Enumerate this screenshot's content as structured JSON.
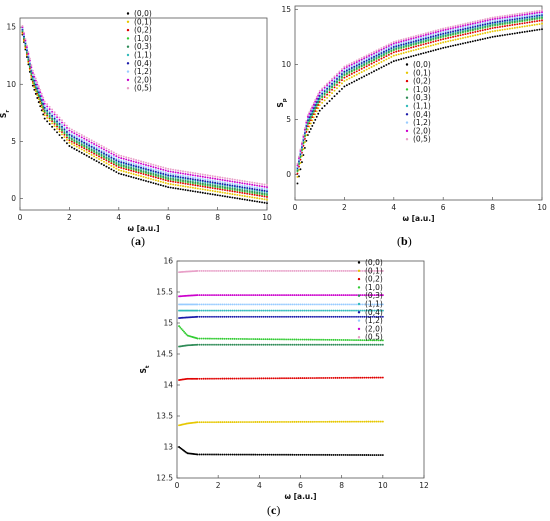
{
  "captions": [
    {
      "open": "(",
      "letter": "a",
      "close": ")"
    },
    {
      "open": "(",
      "letter": "b",
      "close": ")"
    },
    {
      "open": "(",
      "letter": "c",
      "close": ")"
    }
  ],
  "chart_data": [
    {
      "type": "scatter",
      "panel": "a",
      "xlabel": "ω [a.u.]",
      "ylabel": "S_r",
      "xlim": [
        0,
        10
      ],
      "ylim": [
        -1,
        15.8
      ],
      "xticks": [
        0,
        2,
        4,
        6,
        8,
        10
      ],
      "yticks": [
        0,
        5,
        10,
        15
      ],
      "grid": false,
      "legend_position": "top-right",
      "series": [
        {
          "name": "(0,0)",
          "color": "#000000",
          "values": [
            [
              0.1,
              14.35
            ],
            [
              0.5,
              10.0
            ],
            [
              1,
              7.0
            ],
            [
              2,
              4.6
            ],
            [
              4,
              2.2
            ],
            [
              6,
              1.0
            ],
            [
              8,
              0.3
            ],
            [
              10,
              -0.4
            ]
          ]
        },
        {
          "name": "(0,1)",
          "color": "#e6c700",
          "values": [
            [
              0.1,
              14.45
            ],
            [
              0.5,
              10.2
            ],
            [
              1,
              7.3
            ],
            [
              2,
              4.9
            ],
            [
              4,
              2.5
            ],
            [
              6,
              1.3
            ],
            [
              8,
              0.6
            ],
            [
              10,
              -0.1
            ]
          ]
        },
        {
          "name": "(0,2)",
          "color": "#e00000",
          "values": [
            [
              0.1,
              14.55
            ],
            [
              0.5,
              10.35
            ],
            [
              1,
              7.5
            ],
            [
              2,
              5.1
            ],
            [
              4,
              2.75
            ],
            [
              6,
              1.55
            ],
            [
              8,
              0.85
            ],
            [
              10,
              0.15
            ]
          ]
        },
        {
          "name": "(1,0)",
          "color": "#33cc33",
          "values": [
            [
              0.1,
              14.62
            ],
            [
              0.5,
              10.45
            ],
            [
              1,
              7.6
            ],
            [
              2,
              5.25
            ],
            [
              4,
              2.9
            ],
            [
              6,
              1.7
            ],
            [
              8,
              1.0
            ],
            [
              10,
              0.3
            ]
          ]
        },
        {
          "name": "(0,3)",
          "color": "#2e8b57",
          "values": [
            [
              0.1,
              14.68
            ],
            [
              0.5,
              10.55
            ],
            [
              1,
              7.7
            ],
            [
              2,
              5.35
            ],
            [
              4,
              3.0
            ],
            [
              6,
              1.8
            ],
            [
              8,
              1.1
            ],
            [
              10,
              0.4
            ]
          ]
        },
        {
          "name": "(1,1)",
          "color": "#33bbbb",
          "values": [
            [
              0.1,
              14.75
            ],
            [
              0.5,
              10.7
            ],
            [
              1,
              7.85
            ],
            [
              2,
              5.5
            ],
            [
              4,
              3.15
            ],
            [
              6,
              1.95
            ],
            [
              8,
              1.25
            ],
            [
              10,
              0.55
            ]
          ]
        },
        {
          "name": "(0,4)",
          "color": "#1a1aaa",
          "values": [
            [
              0.1,
              14.8
            ],
            [
              0.5,
              10.8
            ],
            [
              1,
              7.95
            ],
            [
              2,
              5.6
            ],
            [
              4,
              3.25
            ],
            [
              6,
              2.05
            ],
            [
              8,
              1.35
            ],
            [
              10,
              0.65
            ]
          ]
        },
        {
          "name": "(1,2)",
          "color": "#99ccff",
          "values": [
            [
              0.1,
              14.9
            ],
            [
              0.5,
              10.9
            ],
            [
              1,
              8.1
            ],
            [
              2,
              5.75
            ],
            [
              4,
              3.4
            ],
            [
              6,
              2.2
            ],
            [
              8,
              1.5
            ],
            [
              10,
              0.8
            ]
          ]
        },
        {
          "name": "(2,0)",
          "color": "#cc00cc",
          "values": [
            [
              0.1,
              15.0
            ],
            [
              0.5,
              11.1
            ],
            [
              1,
              8.3
            ],
            [
              2,
              5.95
            ],
            [
              4,
              3.6
            ],
            [
              6,
              2.4
            ],
            [
              8,
              1.7
            ],
            [
              10,
              1.0
            ]
          ]
        },
        {
          "name": "(0,5)",
          "color": "#e8a0c8",
          "values": [
            [
              0.1,
              15.1
            ],
            [
              0.5,
              11.3
            ],
            [
              1,
              8.5
            ],
            [
              2,
              6.15
            ],
            [
              4,
              3.8
            ],
            [
              6,
              2.6
            ],
            [
              8,
              1.9
            ],
            [
              10,
              1.2
            ]
          ]
        }
      ]
    },
    {
      "type": "scatter",
      "panel": "b",
      "xlabel": "ω [a.u.]",
      "ylabel": "S_p",
      "xlim": [
        0,
        10
      ],
      "ylim": [
        -2.3,
        15.3
      ],
      "xticks": [
        0,
        2,
        4,
        6,
        8,
        10
      ],
      "yticks": [
        0,
        5,
        10,
        15
      ],
      "grid": false,
      "legend_position": "bottom-right",
      "series": [
        {
          "name": "(0,0)",
          "color": "#000000",
          "values": [
            [
              0.1,
              -0.8
            ],
            [
              0.5,
              3.5
            ],
            [
              1,
              5.8
            ],
            [
              2,
              8.0
            ],
            [
              4,
              10.3
            ],
            [
              6,
              11.5
            ],
            [
              8,
              12.5
            ],
            [
              10,
              13.2
            ]
          ]
        },
        {
          "name": "(0,1)",
          "color": "#e6c700",
          "values": [
            [
              0.1,
              -0.2
            ],
            [
              0.5,
              4.0
            ],
            [
              1,
              6.3
            ],
            [
              2,
              8.5
            ],
            [
              4,
              10.8
            ],
            [
              6,
              12.0
            ],
            [
              8,
              13.0
            ],
            [
              10,
              13.7
            ]
          ]
        },
        {
          "name": "(0,2)",
          "color": "#e00000",
          "values": [
            [
              0.1,
              0.1
            ],
            [
              0.5,
              4.3
            ],
            [
              1,
              6.6
            ],
            [
              2,
              8.8
            ],
            [
              4,
              11.1
            ],
            [
              6,
              12.3
            ],
            [
              8,
              13.3
            ],
            [
              10,
              14.0
            ]
          ]
        },
        {
          "name": "(1,0)",
          "color": "#33cc33",
          "values": [
            [
              0.1,
              0.3
            ],
            [
              0.5,
              4.5
            ],
            [
              1,
              6.8
            ],
            [
              2,
              9.0
            ],
            [
              4,
              11.3
            ],
            [
              6,
              12.5
            ],
            [
              8,
              13.5
            ],
            [
              10,
              14.2
            ]
          ]
        },
        {
          "name": "(0,3)",
          "color": "#2e8b57",
          "values": [
            [
              0.1,
              0.4
            ],
            [
              0.5,
              4.6
            ],
            [
              1,
              6.9
            ],
            [
              2,
              9.1
            ],
            [
              4,
              11.4
            ],
            [
              6,
              12.6
            ],
            [
              8,
              13.6
            ],
            [
              10,
              14.3
            ]
          ]
        },
        {
          "name": "(1,1)",
          "color": "#33bbbb",
          "values": [
            [
              0.1,
              0.5
            ],
            [
              0.5,
              4.75
            ],
            [
              1,
              7.05
            ],
            [
              2,
              9.25
            ],
            [
              4,
              11.5
            ],
            [
              6,
              12.7
            ],
            [
              8,
              13.7
            ],
            [
              10,
              14.4
            ]
          ]
        },
        {
          "name": "(0,4)",
          "color": "#1a1aaa",
          "values": [
            [
              0.1,
              0.6
            ],
            [
              0.5,
              4.85
            ],
            [
              1,
              7.15
            ],
            [
              2,
              9.35
            ],
            [
              4,
              11.6
            ],
            [
              6,
              12.8
            ],
            [
              8,
              13.8
            ],
            [
              10,
              14.5
            ]
          ]
        },
        {
          "name": "(1,2)",
          "color": "#99ccff",
          "values": [
            [
              0.1,
              0.7
            ],
            [
              0.5,
              5.0
            ],
            [
              1,
              7.3
            ],
            [
              2,
              9.5
            ],
            [
              4,
              11.75
            ],
            [
              6,
              12.95
            ],
            [
              8,
              13.95
            ],
            [
              10,
              14.6
            ]
          ]
        },
        {
          "name": "(2,0)",
          "color": "#cc00cc",
          "values": [
            [
              0.1,
              0.85
            ],
            [
              0.5,
              5.15
            ],
            [
              1,
              7.45
            ],
            [
              2,
              9.65
            ],
            [
              4,
              11.9
            ],
            [
              6,
              13.1
            ],
            [
              8,
              14.1
            ],
            [
              10,
              14.75
            ]
          ]
        },
        {
          "name": "(0,5)",
          "color": "#e8a0c8",
          "values": [
            [
              0.1,
              1.0
            ],
            [
              0.5,
              5.3
            ],
            [
              1,
              7.6
            ],
            [
              2,
              9.8
            ],
            [
              4,
              12.05
            ],
            [
              6,
              13.25
            ],
            [
              8,
              14.25
            ],
            [
              10,
              14.9
            ]
          ]
        }
      ]
    },
    {
      "type": "scatter",
      "panel": "c",
      "xlabel": "ω [a.u.]",
      "ylabel": "S_t",
      "xlim": [
        0,
        12
      ],
      "ylim": [
        12.5,
        16
      ],
      "xticks": [
        0,
        2,
        4,
        6,
        8,
        10,
        12
      ],
      "yticks": [
        12.5,
        13,
        13.5,
        14,
        14.5,
        15,
        15.5,
        16
      ],
      "grid": false,
      "legend_position": "top-right",
      "series": [
        {
          "name": "(0,0)",
          "color": "#000000",
          "values": [
            [
              0.1,
              13.0
            ],
            [
              0.5,
              12.9
            ],
            [
              1,
              12.88
            ],
            [
              10,
              12.87
            ]
          ]
        },
        {
          "name": "(0,1)",
          "color": "#e6c700",
          "values": [
            [
              0.1,
              13.35
            ],
            [
              0.5,
              13.38
            ],
            [
              1,
              13.4
            ],
            [
              10,
              13.41
            ]
          ]
        },
        {
          "name": "(0,2)",
          "color": "#e00000",
          "values": [
            [
              0.1,
              14.08
            ],
            [
              0.5,
              14.1
            ],
            [
              1,
              14.1
            ],
            [
              10,
              14.12
            ]
          ]
        },
        {
          "name": "(1,0)",
          "color": "#33cc33",
          "values": [
            [
              0.1,
              14.95
            ],
            [
              0.5,
              14.8
            ],
            [
              1,
              14.75
            ],
            [
              10,
              14.72
            ]
          ]
        },
        {
          "name": "(0,3)",
          "color": "#2e8b57",
          "values": [
            [
              0.1,
              14.62
            ],
            [
              0.5,
              14.64
            ],
            [
              1,
              14.65
            ],
            [
              10,
              14.65
            ]
          ]
        },
        {
          "name": "(1,1)",
          "color": "#33bbbb",
          "values": [
            [
              0.1,
              15.2
            ],
            [
              0.5,
              15.2
            ],
            [
              1,
              15.2
            ],
            [
              10,
              15.2
            ]
          ]
        },
        {
          "name": "(0,4)",
          "color": "#1a1aaa",
          "values": [
            [
              0.1,
              15.08
            ],
            [
              0.5,
              15.09
            ],
            [
              1,
              15.1
            ],
            [
              10,
              15.1
            ]
          ]
        },
        {
          "name": "(1,2)",
          "color": "#99ccff",
          "values": [
            [
              0.1,
              15.3
            ],
            [
              0.5,
              15.3
            ],
            [
              1,
              15.3
            ],
            [
              10,
              15.3
            ]
          ]
        },
        {
          "name": "(2,0)",
          "color": "#cc00cc",
          "values": [
            [
              0.1,
              15.43
            ],
            [
              0.5,
              15.44
            ],
            [
              1,
              15.45
            ],
            [
              10,
              15.45
            ]
          ]
        },
        {
          "name": "(0,5)",
          "color": "#e8a0c8",
          "values": [
            [
              0.1,
              15.82
            ],
            [
              0.5,
              15.83
            ],
            [
              1,
              15.84
            ],
            [
              10,
              15.84
            ]
          ]
        }
      ]
    }
  ]
}
